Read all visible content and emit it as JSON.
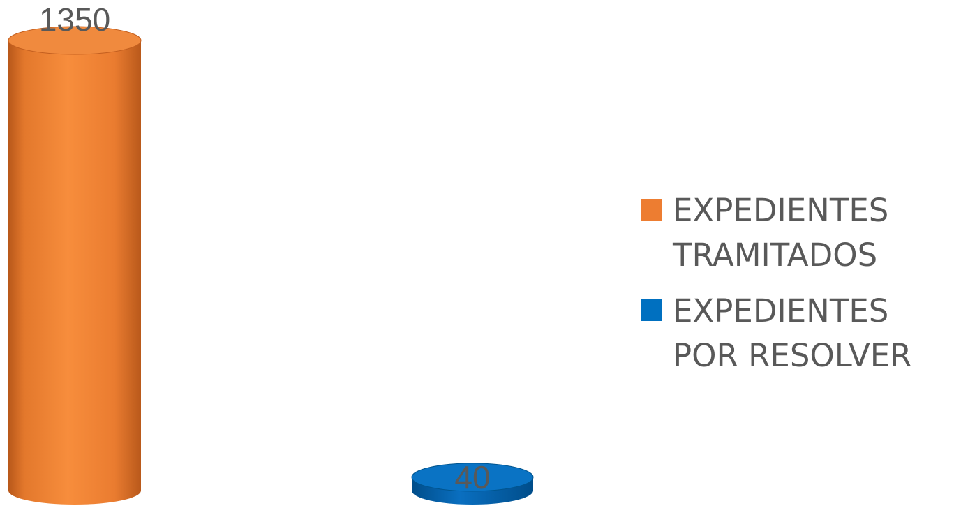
{
  "chart_data": {
    "type": "bar",
    "style": "3d-cylinder",
    "categories": [
      "EXPEDIENTES TRAMITADOS",
      "EXPEDIENTES POR RESOLVER"
    ],
    "series": [
      {
        "name": "EXPEDIENTES TRAMITADOS",
        "value": 1350,
        "label": "1350",
        "color": "#ED7D31"
      },
      {
        "name": "EXPEDIENTES POR RESOLVER",
        "value": 40,
        "label": "40",
        "color": "#0070C0"
      }
    ],
    "ylim": [
      0,
      1350
    ],
    "grid": false,
    "legend_position": "right"
  }
}
